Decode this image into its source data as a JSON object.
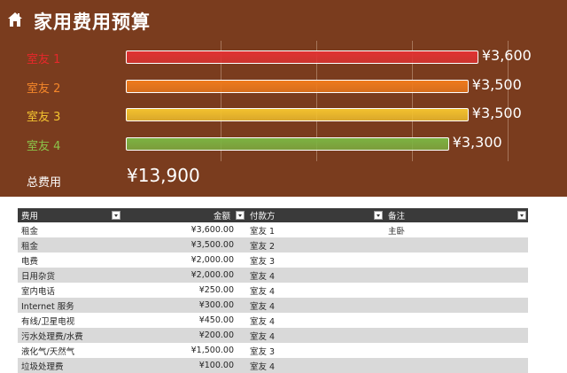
{
  "header": {
    "title": "家用费用预算",
    "icon": "home-icon",
    "background": "#7a3c1e"
  },
  "chart_data": {
    "type": "bar",
    "orientation": "horizontal",
    "categories": [
      "室友 1",
      "室友 2",
      "室友 3",
      "室友 4"
    ],
    "values": [
      3600,
      3500,
      3500,
      3300
    ],
    "value_labels": [
      "¥3,600",
      "¥3,500",
      "¥3,500",
      "¥3,300"
    ],
    "colors": [
      "#e03232",
      "#ee7a1c",
      "#f2c12e",
      "#7cb342"
    ],
    "label_colors": [
      "#e6282b",
      "#f5872a",
      "#f4c430",
      "#8bc34a"
    ],
    "xlim": [
      0,
      3900
    ],
    "grid": true
  },
  "total": {
    "label": "总费用",
    "value": "¥13,900"
  },
  "table": {
    "headers": [
      "费用",
      "金额",
      "付款方",
      "备注"
    ],
    "rows": [
      [
        "租金",
        "¥3,600.00",
        "室友 1",
        "主卧"
      ],
      [
        "租金",
        "¥3,500.00",
        "室友 2",
        ""
      ],
      [
        "电费",
        "¥2,000.00",
        "室友 3",
        ""
      ],
      [
        "日用杂货",
        "¥2,000.00",
        "室友 4",
        ""
      ],
      [
        "室内电话",
        "¥250.00",
        "室友 4",
        ""
      ],
      [
        "Internet 服务",
        "¥300.00",
        "室友 4",
        ""
      ],
      [
        "有线/卫星电视",
        "¥450.00",
        "室友 4",
        ""
      ],
      [
        "污水处理费/水费",
        "¥200.00",
        "室友 4",
        ""
      ],
      [
        "液化气/天然气",
        "¥1,500.00",
        "室友 3",
        ""
      ],
      [
        "垃圾处理费",
        "¥100.00",
        "室友 4",
        ""
      ]
    ]
  }
}
